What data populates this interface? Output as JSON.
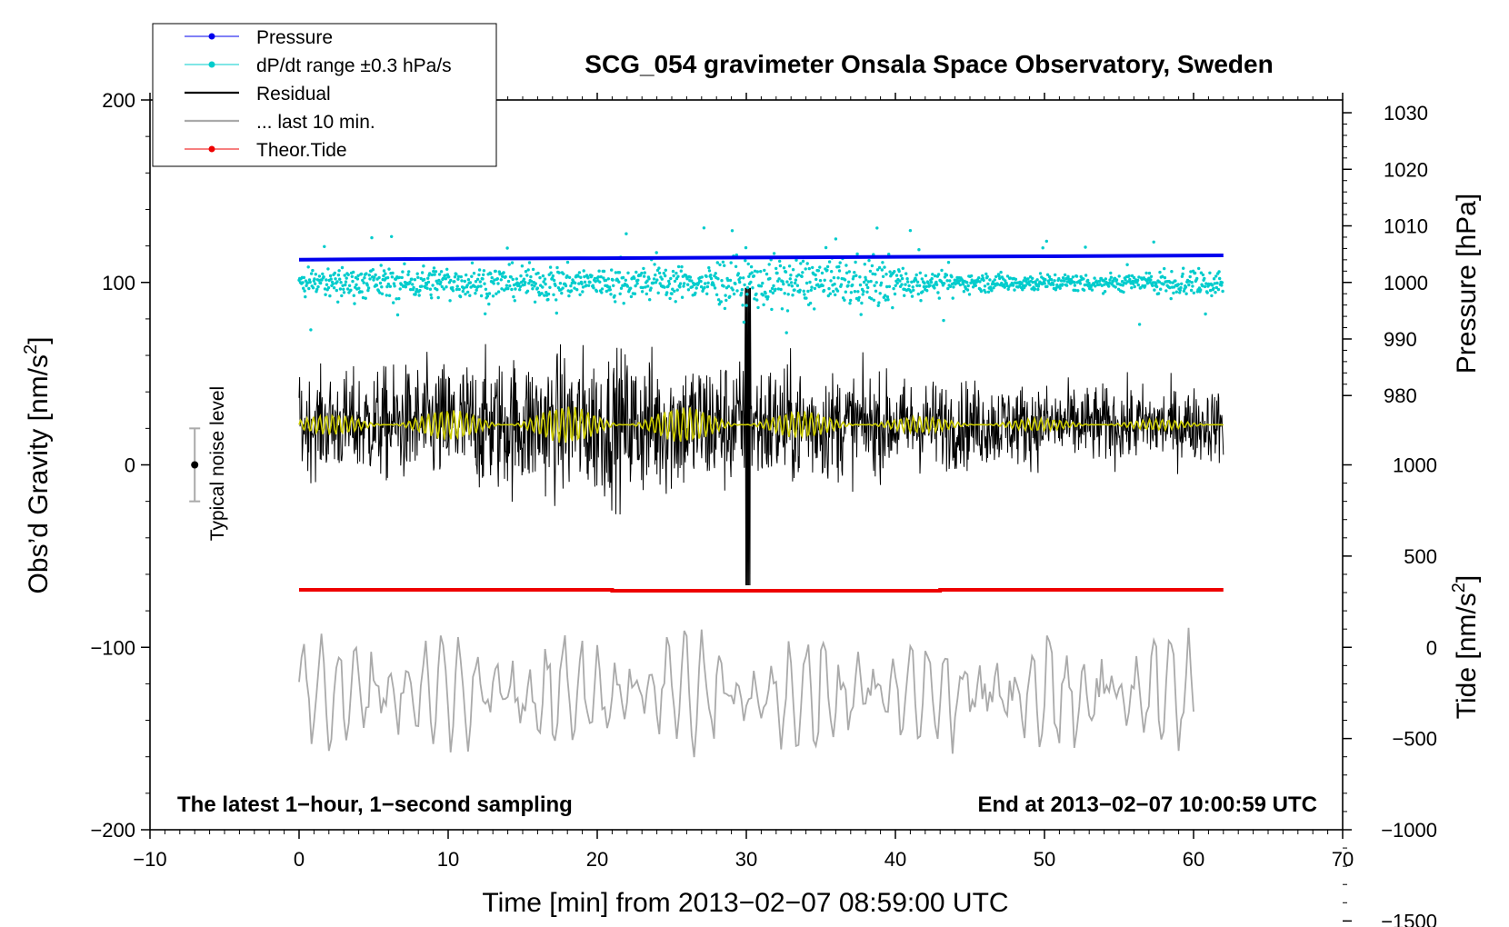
{
  "chart_data": {
    "type": "line",
    "title": "SCG_054 gravimeter Onsala Space Observatory, Sweden",
    "xlabel": "Time [min] from 2013−02−07 08:59:00 UTC",
    "ylabel_left": "Obs’d Gravity [nm/s",
    "ylabel_sup": "2",
    "ylabel_close": "]",
    "ylabel_right_top": "Pressure [hPa]",
    "ylabel_right_bottom": "Tide [nm/s",
    "xlim": [
      -10,
      70
    ],
    "ylim": [
      -200,
      200
    ],
    "x_ticks": [
      {
        "value": -10,
        "label": "−10"
      },
      {
        "value": 0,
        "label": "0"
      },
      {
        "value": 10,
        "label": "10"
      },
      {
        "value": 20,
        "label": "20"
      },
      {
        "value": 30,
        "label": "30"
      },
      {
        "value": 40,
        "label": "40"
      },
      {
        "value": 50,
        "label": "50"
      },
      {
        "value": 60,
        "label": "60"
      },
      {
        "value": 70,
        "label": "70"
      }
    ],
    "y_ticks": [
      {
        "value": 200,
        "label": "200"
      },
      {
        "value": 100,
        "label": "100"
      },
      {
        "value": 0,
        "label": "0"
      },
      {
        "value": -100,
        "label": "−100"
      },
      {
        "value": -200,
        "label": "−200"
      }
    ],
    "pressure_ticks": [
      {
        "value": 1030,
        "label": "1030"
      },
      {
        "value": 1020,
        "label": "1020"
      },
      {
        "value": 1010,
        "label": "1010"
      },
      {
        "value": 1000,
        "label": "1000"
      },
      {
        "value": 990,
        "label": "990"
      },
      {
        "value": 980,
        "label": "980"
      }
    ],
    "tide_ticks": [
      {
        "value": 1000,
        "label": "1000"
      },
      {
        "value": 500,
        "label": "500"
      },
      {
        "value": 0,
        "label": "0"
      },
      {
        "value": -500,
        "label": "−500"
      },
      {
        "value": -1000,
        "label": "−1000"
      },
      {
        "value": -1500,
        "label": "−1500"
      }
    ],
    "legend": [
      {
        "label": "Pressure",
        "color": "#0000ee",
        "marker": true
      },
      {
        "label": "dP/dt range ±0.3 hPa/s",
        "color": "#00cccc",
        "marker": true
      },
      {
        "label": "Residual",
        "color": "#000000",
        "marker": false
      },
      {
        "label": "... last 10 min.",
        "color": "#aaaaaa",
        "marker": false
      },
      {
        "label": "Theor.Tide",
        "color": "#ee0000",
        "marker": true
      }
    ],
    "annotations": {
      "bottom_left": "The latest 1−hour, 1−second sampling",
      "bottom_right": "End at 2013−02−07 10:00:59 UTC",
      "noise_label": "Typical noise level"
    },
    "noise_bar": {
      "x": -7,
      "center": 0,
      "half_range": 20
    },
    "series": [
      {
        "name": "Pressure",
        "color": "#0000ee",
        "x": [
          0,
          10,
          20,
          30,
          40,
          50,
          62
        ],
        "y": [
          112.5,
          113,
          113.3,
          113.6,
          114,
          114.3,
          114.8
        ]
      },
      {
        "name": "dP/dt",
        "color": "#00cccc",
        "center": 100,
        "points": 1500
      },
      {
        "name": "Residual",
        "color": "#000000",
        "x_range": [
          0,
          62
        ],
        "mean": 22,
        "amp_profile": [
          [
            0,
            28
          ],
          [
            10,
            38
          ],
          [
            20,
            45
          ],
          [
            30,
            40
          ],
          [
            40,
            28
          ],
          [
            50,
            24
          ],
          [
            62,
            22
          ]
        ]
      },
      {
        "name": "Smoothed",
        "color": "#cccc00",
        "x_range": [
          0,
          62
        ],
        "mean": 22
      },
      {
        "name": "Theor.Tide",
        "color": "#ee0000",
        "x": [
          0,
          21,
          21,
          43,
          43,
          62
        ],
        "y": [
          -68.5,
          -68.5,
          -69,
          -69,
          -68.5,
          -68.5
        ]
      },
      {
        "name": "Last 10 min",
        "color": "#aaaaaa",
        "x_range": [
          0,
          60
        ],
        "mean": -125,
        "amp": 30
      }
    ]
  }
}
